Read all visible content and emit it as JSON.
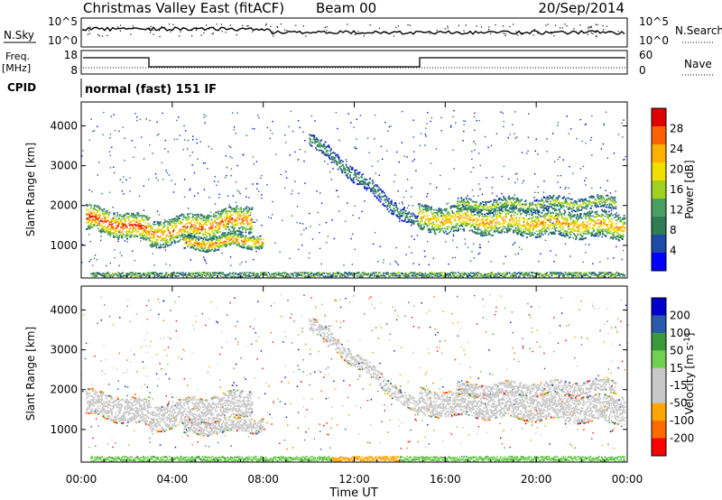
{
  "header": {
    "title": "Christmas Valley East (fitACF)",
    "beam": "Beam 00",
    "date": "20/Sep/2014"
  },
  "status_strip": {
    "nsky_label": "N.Sky",
    "nsearch_label": "N.Search",
    "left_ticks": [
      "10^5",
      "10^0"
    ],
    "right_ticks": [
      "10^5",
      "10^0"
    ],
    "freq_label_top": "Freq.",
    "freq_label_bottom": "[MHz]",
    "freq_ticks": [
      "18",
      "8"
    ],
    "nave_label": "Nave",
    "nave_ticks": [
      "60",
      "0"
    ],
    "cpid_label": "CPID",
    "cpid_value": "normal (fast) 151 IF"
  },
  "colors": {
    "power_scale": [
      "#0000ff",
      "#1f4aa8",
      "#2e7d55",
      "#4aa060",
      "#a0d020",
      "#f0e000",
      "#ffb000",
      "#ff6000",
      "#e00000"
    ],
    "velocity_scale": [
      "#ff0000",
      "#ff6a00",
      "#ffa500",
      "#c8c8c8",
      "#c8c8c8",
      "#70d050",
      "#3a9a3a",
      "#2a5aaa",
      "#0000cc"
    ],
    "ground_scatter": "#c0c0c0"
  },
  "chart_data": [
    {
      "type": "heatmap",
      "title": "Power",
      "xlabel": "",
      "ylabel": "Slant Range [km]",
      "xlim_hours": [
        0,
        24
      ],
      "ylim_km": [
        180,
        4600
      ],
      "y_ticks": [
        "1000",
        "2000",
        "3000",
        "4000"
      ],
      "colorbar_label": "Power [dB]",
      "colorbar_ticks": [
        "4",
        "8",
        "12",
        "16",
        "20",
        "24",
        "28"
      ],
      "colorbar_range": [
        0,
        30
      ],
      "features": [
        {
          "region": "main band",
          "t_start": 0.0,
          "t_end": 3.0,
          "range_center_km": [
            1500,
            1300
          ],
          "power_db": 28
        },
        {
          "region": "main band",
          "t_start": 3.0,
          "t_end": 8.0,
          "range_center_km": [
            1300,
            1700
          ],
          "power_db": 24
        },
        {
          "region": "lower arc",
          "t_start": 4.5,
          "t_end": 8.0,
          "range_center_km": [
            900,
            1200
          ],
          "power_db": 22
        },
        {
          "region": "rising arc",
          "t_start": 10.0,
          "t_end": 14.5,
          "range_center_km": [
            3800,
            1500
          ],
          "power_db": 10
        },
        {
          "region": "late band",
          "t_start": 16.0,
          "t_end": 24.0,
          "range_center_km": [
            1600,
            1500
          ],
          "power_db": 20
        }
      ]
    },
    {
      "type": "heatmap",
      "title": "Velocity",
      "xlabel": "Time UT",
      "ylabel": "Slant Range [km]",
      "xlim_hours": [
        0,
        24
      ],
      "ylim_km": [
        180,
        4600
      ],
      "x_ticks": [
        "00:00",
        "04:00",
        "08:00",
        "12:00",
        "16:00",
        "20:00",
        "00:00"
      ],
      "y_ticks": [
        "1000",
        "2000",
        "3000",
        "4000"
      ],
      "colorbar_label": "Velocity [m s^-1]",
      "colorbar_ticks": [
        "200",
        "100",
        "50",
        "15",
        "-15",
        "-50",
        "-100",
        "-200"
      ],
      "colorbar_range": [
        -250,
        250
      ]
    }
  ]
}
